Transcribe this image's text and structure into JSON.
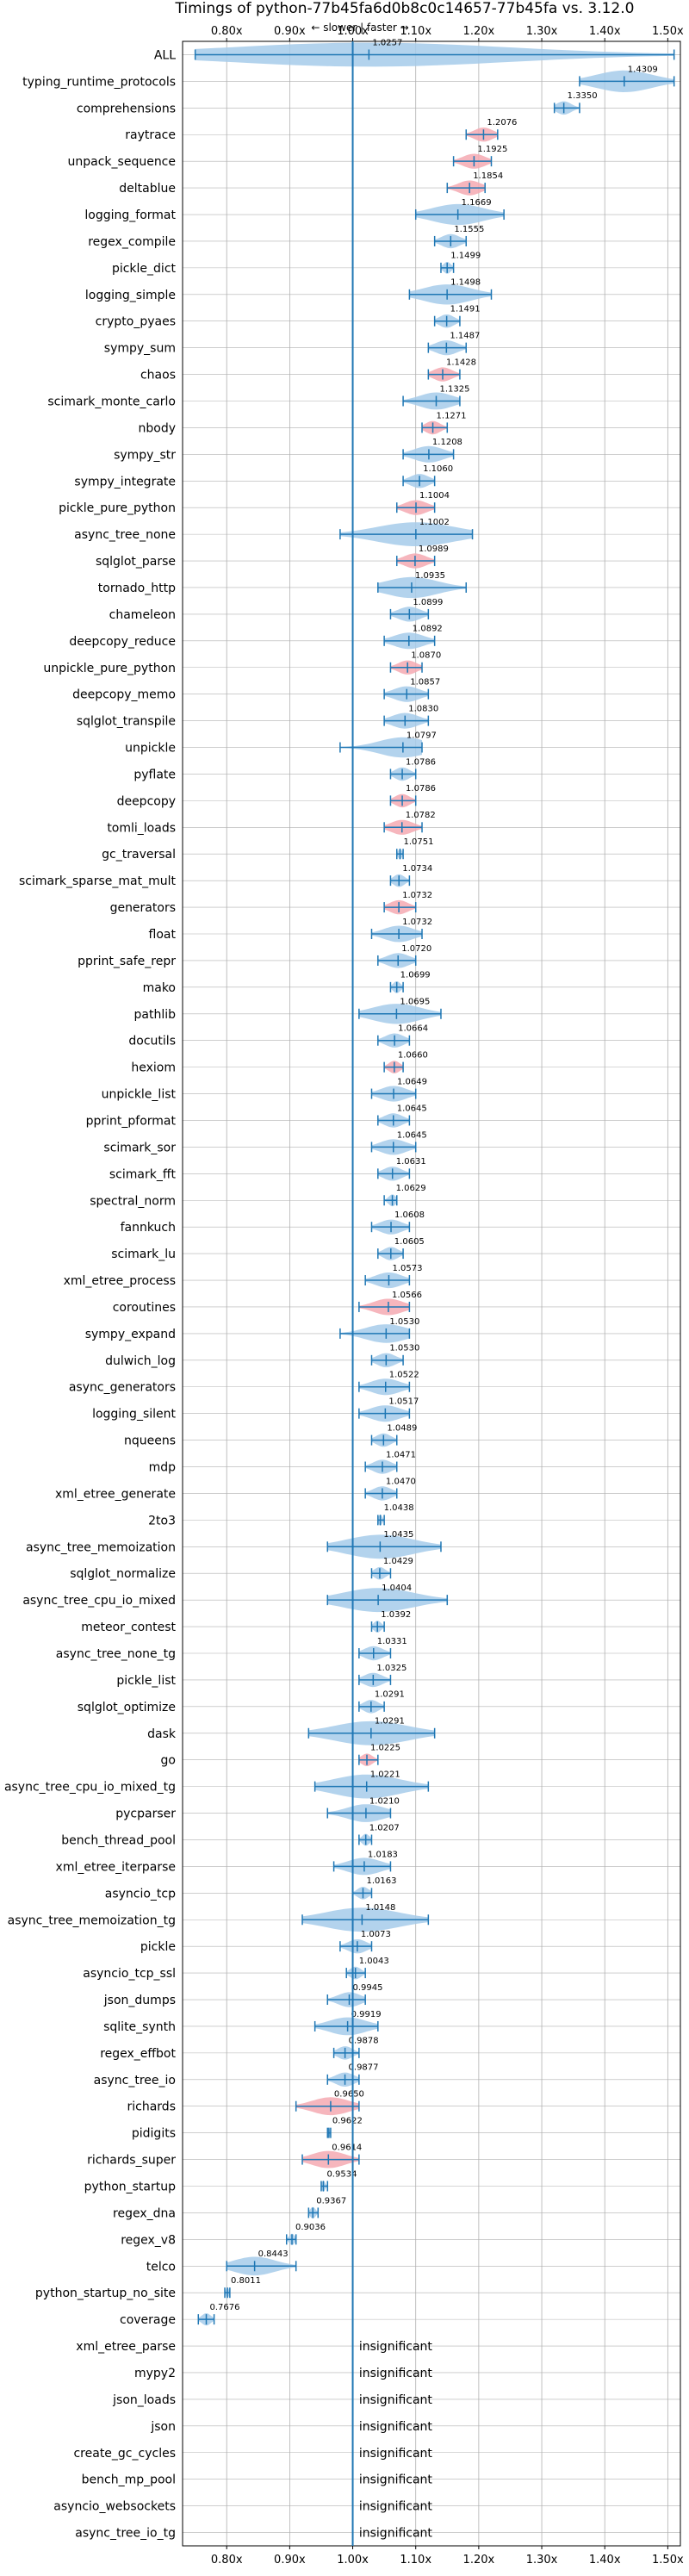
{
  "chart_data": {
    "type": "violin",
    "title": "Timings of python-77b45fa6d0b8c0c14657-77b45fa vs. 3.12.0",
    "direction_label": "← slower | faster →",
    "xlim": [
      0.73,
      1.52
    ],
    "ticks": [
      0.8,
      0.9,
      1.0,
      1.1,
      1.2,
      1.3,
      1.4,
      1.5
    ],
    "tick_labels": [
      "0.80x",
      "0.90x",
      "1.00x",
      "1.10x",
      "1.20x",
      "1.30x",
      "1.40x",
      "1.50x"
    ],
    "reference": 1.0,
    "grid": true,
    "benchmarks": [
      {
        "name": "ALL",
        "value": 1.0257,
        "label": "1.0257",
        "lo": 0.75,
        "hi": 1.51,
        "highlight": false
      },
      {
        "name": "typing_runtime_protocols",
        "value": 1.4309,
        "label": "1.4309",
        "lo": 1.36,
        "hi": 1.51,
        "highlight": false
      },
      {
        "name": "comprehensions",
        "value": 1.335,
        "label": "1.3350",
        "lo": 1.32,
        "hi": 1.36,
        "highlight": false
      },
      {
        "name": "raytrace",
        "value": 1.2076,
        "label": "1.2076",
        "lo": 1.18,
        "hi": 1.23,
        "highlight": true
      },
      {
        "name": "unpack_sequence",
        "value": 1.1925,
        "label": "1.1925",
        "lo": 1.16,
        "hi": 1.22,
        "highlight": true
      },
      {
        "name": "deltablue",
        "value": 1.1854,
        "label": "1.1854",
        "lo": 1.15,
        "hi": 1.21,
        "highlight": true
      },
      {
        "name": "logging_format",
        "value": 1.1669,
        "label": "1.1669",
        "lo": 1.1,
        "hi": 1.24,
        "highlight": false
      },
      {
        "name": "regex_compile",
        "value": 1.1555,
        "label": "1.1555",
        "lo": 1.13,
        "hi": 1.18,
        "highlight": false
      },
      {
        "name": "pickle_dict",
        "value": 1.1499,
        "label": "1.1499",
        "lo": 1.14,
        "hi": 1.16,
        "highlight": false
      },
      {
        "name": "logging_simple",
        "value": 1.1498,
        "label": "1.1498",
        "lo": 1.09,
        "hi": 1.22,
        "highlight": false
      },
      {
        "name": "crypto_pyaes",
        "value": 1.1491,
        "label": "1.1491",
        "lo": 1.13,
        "hi": 1.17,
        "highlight": false
      },
      {
        "name": "sympy_sum",
        "value": 1.1487,
        "label": "1.1487",
        "lo": 1.12,
        "hi": 1.18,
        "highlight": false
      },
      {
        "name": "chaos",
        "value": 1.1428,
        "label": "1.1428",
        "lo": 1.12,
        "hi": 1.17,
        "highlight": true
      },
      {
        "name": "scimark_monte_carlo",
        "value": 1.1325,
        "label": "1.1325",
        "lo": 1.08,
        "hi": 1.17,
        "highlight": false
      },
      {
        "name": "nbody",
        "value": 1.1271,
        "label": "1.1271",
        "lo": 1.11,
        "hi": 1.15,
        "highlight": true
      },
      {
        "name": "sympy_str",
        "value": 1.1208,
        "label": "1.1208",
        "lo": 1.08,
        "hi": 1.16,
        "highlight": false
      },
      {
        "name": "sympy_integrate",
        "value": 1.106,
        "label": "1.1060",
        "lo": 1.08,
        "hi": 1.13,
        "highlight": false
      },
      {
        "name": "pickle_pure_python",
        "value": 1.1004,
        "label": "1.1004",
        "lo": 1.07,
        "hi": 1.13,
        "highlight": true
      },
      {
        "name": "async_tree_none",
        "value": 1.1002,
        "label": "1.1002",
        "lo": 0.98,
        "hi": 1.19,
        "highlight": false
      },
      {
        "name": "sqlglot_parse",
        "value": 1.0989,
        "label": "1.0989",
        "lo": 1.07,
        "hi": 1.13,
        "highlight": true
      },
      {
        "name": "tornado_http",
        "value": 1.0935,
        "label": "1.0935",
        "lo": 1.04,
        "hi": 1.18,
        "highlight": false
      },
      {
        "name": "chameleon",
        "value": 1.0899,
        "label": "1.0899",
        "lo": 1.06,
        "hi": 1.12,
        "highlight": false
      },
      {
        "name": "deepcopy_reduce",
        "value": 1.0892,
        "label": "1.0892",
        "lo": 1.05,
        "hi": 1.13,
        "highlight": false
      },
      {
        "name": "unpickle_pure_python",
        "value": 1.087,
        "label": "1.0870",
        "lo": 1.06,
        "hi": 1.11,
        "highlight": true
      },
      {
        "name": "deepcopy_memo",
        "value": 1.0857,
        "label": "1.0857",
        "lo": 1.05,
        "hi": 1.12,
        "highlight": false
      },
      {
        "name": "sqlglot_transpile",
        "value": 1.083,
        "label": "1.0830",
        "lo": 1.05,
        "hi": 1.12,
        "highlight": false
      },
      {
        "name": "unpickle",
        "value": 1.0797,
        "label": "1.0797",
        "lo": 0.98,
        "hi": 1.11,
        "highlight": false
      },
      {
        "name": "pyflate",
        "value": 1.0786,
        "label": "1.0786",
        "lo": 1.06,
        "hi": 1.1,
        "highlight": false
      },
      {
        "name": "deepcopy",
        "value": 1.0786,
        "label": "1.0786",
        "lo": 1.06,
        "hi": 1.1,
        "highlight": true
      },
      {
        "name": "tomli_loads",
        "value": 1.0782,
        "label": "1.0782",
        "lo": 1.05,
        "hi": 1.11,
        "highlight": true
      },
      {
        "name": "gc_traversal",
        "value": 1.0751,
        "label": "1.0751",
        "lo": 1.07,
        "hi": 1.08,
        "highlight": false
      },
      {
        "name": "scimark_sparse_mat_mult",
        "value": 1.0734,
        "label": "1.0734",
        "lo": 1.06,
        "hi": 1.09,
        "highlight": false
      },
      {
        "name": "generators",
        "value": 1.0732,
        "label": "1.0732",
        "lo": 1.05,
        "hi": 1.1,
        "highlight": true
      },
      {
        "name": "float",
        "value": 1.0732,
        "label": "1.0732",
        "lo": 1.03,
        "hi": 1.11,
        "highlight": false
      },
      {
        "name": "pprint_safe_repr",
        "value": 1.072,
        "label": "1.0720",
        "lo": 1.04,
        "hi": 1.1,
        "highlight": false
      },
      {
        "name": "mako",
        "value": 1.0699,
        "label": "1.0699",
        "lo": 1.06,
        "hi": 1.08,
        "highlight": false
      },
      {
        "name": "pathlib",
        "value": 1.0695,
        "label": "1.0695",
        "lo": 1.01,
        "hi": 1.14,
        "highlight": false
      },
      {
        "name": "docutils",
        "value": 1.0664,
        "label": "1.0664",
        "lo": 1.04,
        "hi": 1.09,
        "highlight": false
      },
      {
        "name": "hexiom",
        "value": 1.066,
        "label": "1.0660",
        "lo": 1.05,
        "hi": 1.08,
        "highlight": true
      },
      {
        "name": "unpickle_list",
        "value": 1.0649,
        "label": "1.0649",
        "lo": 1.03,
        "hi": 1.1,
        "highlight": false
      },
      {
        "name": "pprint_pformat",
        "value": 1.0645,
        "label": "1.0645",
        "lo": 1.04,
        "hi": 1.09,
        "highlight": false
      },
      {
        "name": "scimark_sor",
        "value": 1.0645,
        "label": "1.0645",
        "lo": 1.03,
        "hi": 1.1,
        "highlight": false
      },
      {
        "name": "scimark_fft",
        "value": 1.0631,
        "label": "1.0631",
        "lo": 1.04,
        "hi": 1.09,
        "highlight": false
      },
      {
        "name": "spectral_norm",
        "value": 1.0629,
        "label": "1.0629",
        "lo": 1.05,
        "hi": 1.07,
        "highlight": false
      },
      {
        "name": "fannkuch",
        "value": 1.0608,
        "label": "1.0608",
        "lo": 1.03,
        "hi": 1.09,
        "highlight": false
      },
      {
        "name": "scimark_lu",
        "value": 1.0605,
        "label": "1.0605",
        "lo": 1.04,
        "hi": 1.08,
        "highlight": false
      },
      {
        "name": "xml_etree_process",
        "value": 1.0573,
        "label": "1.0573",
        "lo": 1.02,
        "hi": 1.09,
        "highlight": false
      },
      {
        "name": "coroutines",
        "value": 1.0566,
        "label": "1.0566",
        "lo": 1.01,
        "hi": 1.09,
        "highlight": true
      },
      {
        "name": "sympy_expand",
        "value": 1.053,
        "label": "1.0530",
        "lo": 0.98,
        "hi": 1.09,
        "highlight": false
      },
      {
        "name": "dulwich_log",
        "value": 1.053,
        "label": "1.0530",
        "lo": 1.03,
        "hi": 1.08,
        "highlight": false
      },
      {
        "name": "async_generators",
        "value": 1.0522,
        "label": "1.0522",
        "lo": 1.01,
        "hi": 1.09,
        "highlight": false
      },
      {
        "name": "logging_silent",
        "value": 1.0517,
        "label": "1.0517",
        "lo": 1.01,
        "hi": 1.09,
        "highlight": false
      },
      {
        "name": "nqueens",
        "value": 1.0489,
        "label": "1.0489",
        "lo": 1.03,
        "hi": 1.07,
        "highlight": false
      },
      {
        "name": "mdp",
        "value": 1.0471,
        "label": "1.0471",
        "lo": 1.02,
        "hi": 1.07,
        "highlight": false
      },
      {
        "name": "xml_etree_generate",
        "value": 1.047,
        "label": "1.0470",
        "lo": 1.02,
        "hi": 1.07,
        "highlight": false
      },
      {
        "name": "2to3",
        "value": 1.0438,
        "label": "1.0438",
        "lo": 1.04,
        "hi": 1.05,
        "highlight": false
      },
      {
        "name": "async_tree_memoization",
        "value": 1.0435,
        "label": "1.0435",
        "lo": 0.96,
        "hi": 1.14,
        "highlight": false
      },
      {
        "name": "sqlglot_normalize",
        "value": 1.0429,
        "label": "1.0429",
        "lo": 1.03,
        "hi": 1.06,
        "highlight": false
      },
      {
        "name": "async_tree_cpu_io_mixed",
        "value": 1.0404,
        "label": "1.0404",
        "lo": 0.96,
        "hi": 1.15,
        "highlight": false
      },
      {
        "name": "meteor_contest",
        "value": 1.0392,
        "label": "1.0392",
        "lo": 1.03,
        "hi": 1.05,
        "highlight": false
      },
      {
        "name": "async_tree_none_tg",
        "value": 1.0331,
        "label": "1.0331",
        "lo": 1.01,
        "hi": 1.06,
        "highlight": false
      },
      {
        "name": "pickle_list",
        "value": 1.0325,
        "label": "1.0325",
        "lo": 1.01,
        "hi": 1.06,
        "highlight": false
      },
      {
        "name": "sqlglot_optimize",
        "value": 1.0291,
        "label": "1.0291",
        "lo": 1.01,
        "hi": 1.05,
        "highlight": false
      },
      {
        "name": "dask",
        "value": 1.0291,
        "label": "1.0291",
        "lo": 0.93,
        "hi": 1.13,
        "highlight": false
      },
      {
        "name": "go",
        "value": 1.0225,
        "label": "1.0225",
        "lo": 1.01,
        "hi": 1.04,
        "highlight": true
      },
      {
        "name": "async_tree_cpu_io_mixed_tg",
        "value": 1.0221,
        "label": "1.0221",
        "lo": 0.94,
        "hi": 1.12,
        "highlight": false
      },
      {
        "name": "pycparser",
        "value": 1.021,
        "label": "1.0210",
        "lo": 0.96,
        "hi": 1.06,
        "highlight": false
      },
      {
        "name": "bench_thread_pool",
        "value": 1.0207,
        "label": "1.0207",
        "lo": 1.01,
        "hi": 1.03,
        "highlight": false
      },
      {
        "name": "xml_etree_iterparse",
        "value": 1.0183,
        "label": "1.0183",
        "lo": 0.97,
        "hi": 1.06,
        "highlight": false
      },
      {
        "name": "asyncio_tcp",
        "value": 1.0163,
        "label": "1.0163",
        "lo": 1.0,
        "hi": 1.03,
        "highlight": false
      },
      {
        "name": "async_tree_memoization_tg",
        "value": 1.0148,
        "label": "1.0148",
        "lo": 0.92,
        "hi": 1.12,
        "highlight": false
      },
      {
        "name": "pickle",
        "value": 1.0073,
        "label": "1.0073",
        "lo": 0.98,
        "hi": 1.03,
        "highlight": false
      },
      {
        "name": "asyncio_tcp_ssl",
        "value": 1.0043,
        "label": "1.0043",
        "lo": 0.99,
        "hi": 1.02,
        "highlight": false
      },
      {
        "name": "json_dumps",
        "value": 0.9945,
        "label": "0.9945",
        "lo": 0.96,
        "hi": 1.02,
        "highlight": false
      },
      {
        "name": "sqlite_synth",
        "value": 0.9919,
        "label": "0.9919",
        "lo": 0.94,
        "hi": 1.04,
        "highlight": false
      },
      {
        "name": "regex_effbot",
        "value": 0.9878,
        "label": "0.9878",
        "lo": 0.97,
        "hi": 1.01,
        "highlight": false
      },
      {
        "name": "async_tree_io",
        "value": 0.9877,
        "label": "0.9877",
        "lo": 0.96,
        "hi": 1.01,
        "highlight": false
      },
      {
        "name": "richards",
        "value": 0.965,
        "label": "0.9650",
        "lo": 0.91,
        "hi": 1.01,
        "highlight": true
      },
      {
        "name": "pidigits",
        "value": 0.9622,
        "label": "0.9622",
        "lo": 0.96,
        "hi": 0.965,
        "highlight": false
      },
      {
        "name": "richards_super",
        "value": 0.9614,
        "label": "0.9614",
        "lo": 0.92,
        "hi": 1.01,
        "highlight": true
      },
      {
        "name": "python_startup",
        "value": 0.9534,
        "label": "0.9534",
        "lo": 0.95,
        "hi": 0.96,
        "highlight": false
      },
      {
        "name": "regex_dna",
        "value": 0.9367,
        "label": "0.9367",
        "lo": 0.93,
        "hi": 0.945,
        "highlight": false
      },
      {
        "name": "regex_v8",
        "value": 0.9036,
        "label": "0.9036",
        "lo": 0.895,
        "hi": 0.91,
        "highlight": false
      },
      {
        "name": "telco",
        "value": 0.8443,
        "label": "0.8443",
        "lo": 0.8,
        "hi": 0.91,
        "highlight": false
      },
      {
        "name": "python_startup_no_site",
        "value": 0.8011,
        "label": "0.8011",
        "lo": 0.797,
        "hi": 0.805,
        "highlight": false
      },
      {
        "name": "coverage",
        "value": 0.7676,
        "label": "0.7676",
        "lo": 0.755,
        "hi": 0.78,
        "highlight": false
      }
    ],
    "insignificant": [
      "xml_etree_parse",
      "mypy2",
      "json_loads",
      "json",
      "create_gc_cycles",
      "bench_mp_pool",
      "asyncio_websockets",
      "async_tree_io_tg"
    ],
    "insignificant_label": "insignificant",
    "colors": {
      "violin": "#a6cbea",
      "highlight": "#f4a9b2",
      "line": "#1f77b4",
      "grid": "#b0b0b0",
      "axis": "#000000"
    }
  }
}
